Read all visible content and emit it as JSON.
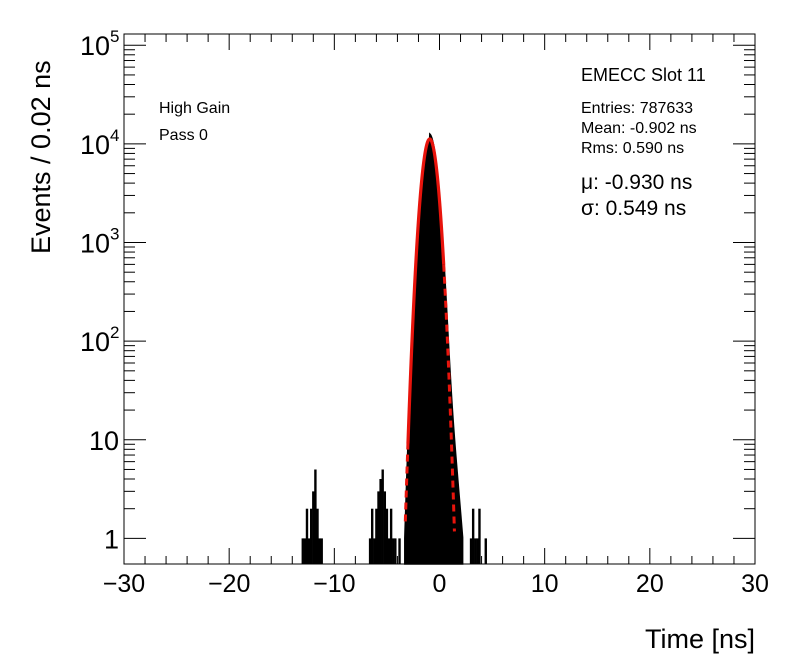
{
  "chart_data": {
    "type": "histogram",
    "x_label": "Time [ns]",
    "y_label": "Events / 0.02 ns",
    "x_range": [
      -30,
      30
    ],
    "y_range": [
      0.55,
      130000
    ],
    "y_scale": "log",
    "x_ticks": [
      {
        "value": -30,
        "label": "−30"
      },
      {
        "value": -20,
        "label": "−20"
      },
      {
        "value": -10,
        "label": "−10"
      },
      {
        "value": 0,
        "label": "0"
      },
      {
        "value": 10,
        "label": "10"
      },
      {
        "value": 20,
        "label": "20"
      },
      {
        "value": 30,
        "label": "30"
      }
    ],
    "y_ticks": [
      {
        "value": 1,
        "base": "1",
        "exp": ""
      },
      {
        "value": 10,
        "base": "10",
        "exp": ""
      },
      {
        "value": 100,
        "base": "10",
        "exp": "2"
      },
      {
        "value": 1000,
        "base": "10",
        "exp": "3"
      },
      {
        "value": 10000,
        "base": "10",
        "exp": "4"
      },
      {
        "value": 100000,
        "base": "10",
        "exp": "5"
      }
    ],
    "left_labels": [
      "High Gain",
      "Pass 0"
    ],
    "stats": {
      "title": "EMECC Slot 11",
      "entries": "Entries: 787633",
      "mean": "Mean: -0.902 ns",
      "rms": "Rms: 0.590 ns"
    },
    "fit_params": {
      "mu": "μ: -0.930 ns",
      "sigma": "σ: 0.549 ns"
    },
    "fit": {
      "type": "gaussian",
      "mu": -0.93,
      "sigma": 0.549,
      "amplitude": 11200,
      "solid_range": [
        -3.0,
        0.4
      ],
      "color": "#e8140c"
    },
    "histogram_color": "#000000",
    "outlier_bins": [
      {
        "x": -13.0,
        "count": 1
      },
      {
        "x": -12.8,
        "count": 1
      },
      {
        "x": -12.6,
        "count": 2
      },
      {
        "x": -12.4,
        "count": 1
      },
      {
        "x": -12.2,
        "count": 2
      },
      {
        "x": -12.0,
        "count": 3
      },
      {
        "x": -11.8,
        "count": 5
      },
      {
        "x": -11.6,
        "count": 2
      },
      {
        "x": -11.4,
        "count": 1
      },
      {
        "x": -11.2,
        "count": 1
      },
      {
        "x": -6.6,
        "count": 1
      },
      {
        "x": -6.4,
        "count": 2
      },
      {
        "x": -6.2,
        "count": 1
      },
      {
        "x": -6.0,
        "count": 2
      },
      {
        "x": -5.8,
        "count": 3
      },
      {
        "x": -5.6,
        "count": 4
      },
      {
        "x": -5.4,
        "count": 5
      },
      {
        "x": -5.2,
        "count": 3
      },
      {
        "x": -5.0,
        "count": 2
      },
      {
        "x": -4.8,
        "count": 1
      },
      {
        "x": -4.6,
        "count": 2
      },
      {
        "x": -4.4,
        "count": 1
      },
      {
        "x": -4.2,
        "count": 1
      },
      {
        "x": -3.8,
        "count": 1
      },
      {
        "x": 3.0,
        "count": 1
      },
      {
        "x": 3.2,
        "count": 2
      },
      {
        "x": 3.4,
        "count": 1
      },
      {
        "x": 3.6,
        "count": 1
      },
      {
        "x": 3.8,
        "count": 2
      },
      {
        "x": 4.4,
        "count": 1
      }
    ]
  }
}
